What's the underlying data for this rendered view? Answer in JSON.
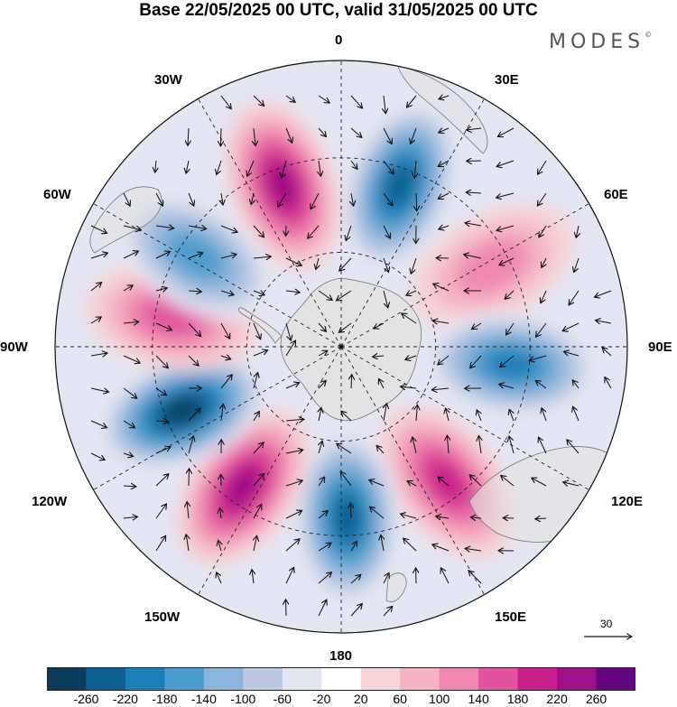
{
  "title": "Base 22/05/2025 00 UTC, valid 31/05/2025 00 UTC",
  "brand": "MODES",
  "brand_mark": "©",
  "longitude_labels": {
    "top": "0",
    "bottom": "180",
    "left": "90W",
    "right": "90E",
    "w30": "30W",
    "w60": "60W",
    "w120": "120W",
    "w150": "150W",
    "e30": "30E",
    "e60": "60E",
    "e120": "120E",
    "e150": "150E"
  },
  "projection": "south-polar-stereographic",
  "reference_vector": {
    "label": "30",
    "icon": "arrow-right-icon"
  },
  "colorbar": {
    "colors": [
      "#0b3c5d",
      "#0e5e8f",
      "#1a7fb8",
      "#4b9ccc",
      "#8ab4dc",
      "#bac8e3",
      "#e4e6f1",
      "#ffffff",
      "#f6d3d7",
      "#f5b3c4",
      "#ef87b0",
      "#e2549d",
      "#c91f8a",
      "#9c1186",
      "#62077e"
    ],
    "tick_labels": [
      "-260",
      "-220",
      "-180",
      "-140",
      "-100",
      "-60",
      "-20",
      "20",
      "60",
      "100",
      "140",
      "180",
      "220",
      "260"
    ]
  },
  "anomaly_centers": [
    {
      "lon": 20,
      "sign": "negative",
      "strength": 230
    },
    {
      "lon": -20,
      "sign": "positive",
      "strength": 250
    },
    {
      "lon": 62,
      "sign": "positive",
      "strength": 110
    },
    {
      "lon": 96,
      "sign": "negative",
      "strength": 220
    },
    {
      "lon": 142,
      "sign": "positive",
      "strength": 210
    },
    {
      "lon": 178,
      "sign": "negative",
      "strength": 240
    },
    {
      "lon": -145,
      "sign": "positive",
      "strength": 230
    },
    {
      "lon": -112,
      "sign": "negative",
      "strength": 270
    },
    {
      "lon": -80,
      "sign": "positive",
      "strength": 170
    },
    {
      "lon": -58,
      "sign": "negative",
      "strength": 170
    }
  ]
}
